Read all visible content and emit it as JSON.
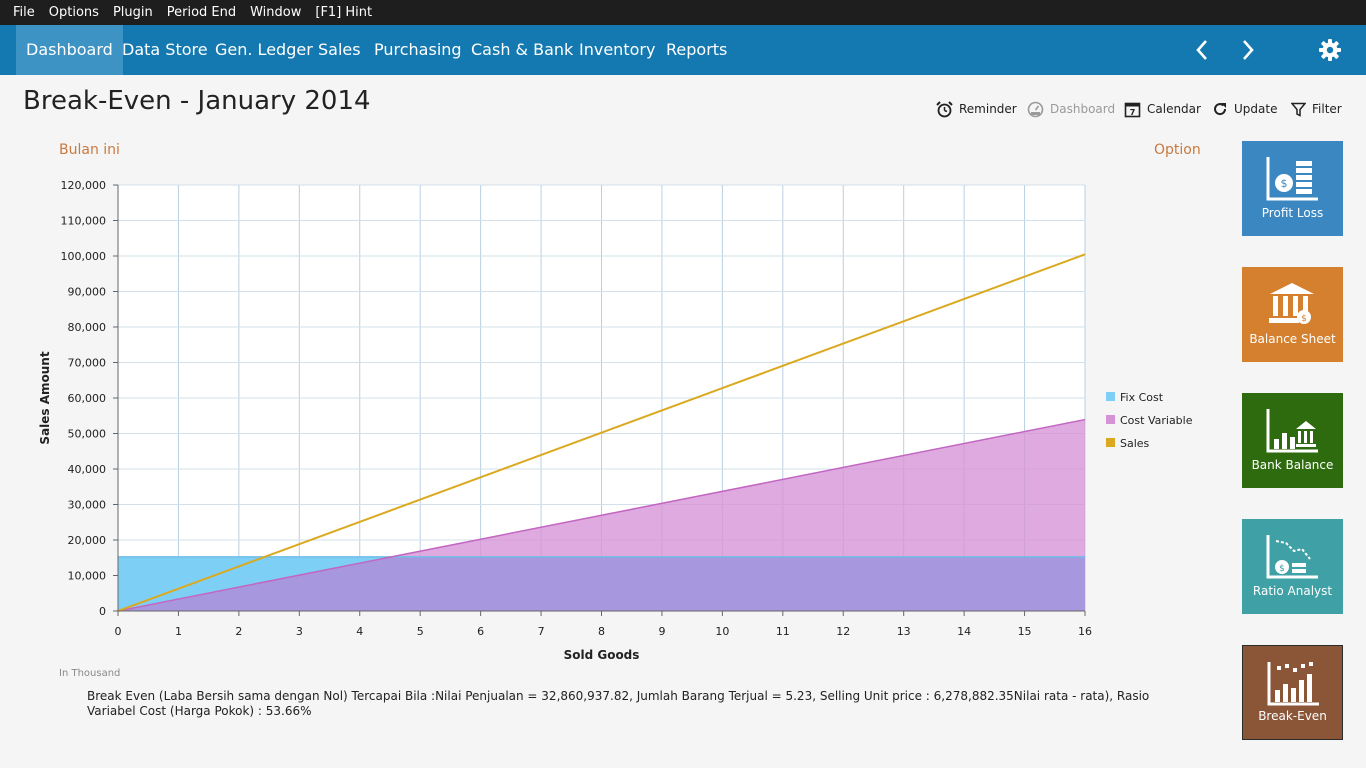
{
  "menu": [
    "File",
    "Options",
    "Plugin",
    "Period End",
    "Window",
    "[F1] Hint"
  ],
  "nav": {
    "tabs": [
      "Dashboard",
      "Data Store",
      "Gen. Ledger",
      "Sales",
      "Purchasing",
      "Cash & Bank",
      "Inventory",
      "Reports"
    ],
    "active_tab": "Dashboard",
    "back_icon": "chevron-left-icon",
    "forward_icon": "chevron-right-icon",
    "settings_icon": "gear-icon"
  },
  "page": {
    "title": "Break-Even - January 2014"
  },
  "toolbar": {
    "reminder": "Reminder",
    "dashboard": "Dashboard",
    "calendar": "Calendar",
    "calendar_day": "7",
    "update": "Update",
    "filter": "Filter"
  },
  "period_label": "Bulan ini",
  "option_label": "Option",
  "tiles": [
    {
      "label": "Profit Loss",
      "color": "#3a87c1",
      "icon": "profit-loss-icon"
    },
    {
      "label": "Balance Sheet",
      "color": "#d4802e",
      "icon": "balance-sheet-icon"
    },
    {
      "label": "Bank Balance",
      "color": "#2e6b0e",
      "icon": "bank-balance-icon"
    },
    {
      "label": "Ratio Analyst",
      "color": "#3fa0a6",
      "icon": "ratio-analyst-icon"
    },
    {
      "label": "Break-Even",
      "color": "#8b5538",
      "icon": "break-even-icon"
    }
  ],
  "chart_data": {
    "type": "area",
    "xlabel": "Sold Goods",
    "ylabel": "Sales Amount",
    "xlim": [
      0,
      16
    ],
    "ylim": [
      0,
      120000
    ],
    "x_ticks": [
      0,
      1,
      2,
      3,
      4,
      5,
      6,
      7,
      8,
      9,
      10,
      11,
      12,
      13,
      14,
      15,
      16
    ],
    "y_ticks": [
      0,
      10000,
      20000,
      30000,
      40000,
      50000,
      60000,
      70000,
      80000,
      90000,
      100000,
      110000,
      120000
    ],
    "grid": true,
    "legend": "right",
    "series": [
      {
        "name": "Fix Cost",
        "kind": "area",
        "color": "#7ecff5",
        "x": [
          0,
          16
        ],
        "y": [
          15230,
          15230
        ]
      },
      {
        "name": "Cost Variable",
        "kind": "area",
        "color": "#d692d6",
        "x": [
          0,
          16
        ],
        "y": [
          0,
          53930
        ]
      },
      {
        "name": "Sales",
        "kind": "line",
        "color": "#dba91f",
        "x": [
          0,
          16
        ],
        "y": [
          0,
          100460
        ]
      }
    ],
    "overlap_color": "#a797df"
  },
  "footnote": "In Thousand",
  "summary": "Break Even (Laba Bersih sama dengan Nol) Tercapai Bila :Nilai Penjualan = 32,860,937.82, Jumlah Barang Terjual = 5.23, Selling Unit price : 6,278,882.35Nilai rata - rata), Rasio Variabel Cost (Harga Pokok) : 53.66%"
}
